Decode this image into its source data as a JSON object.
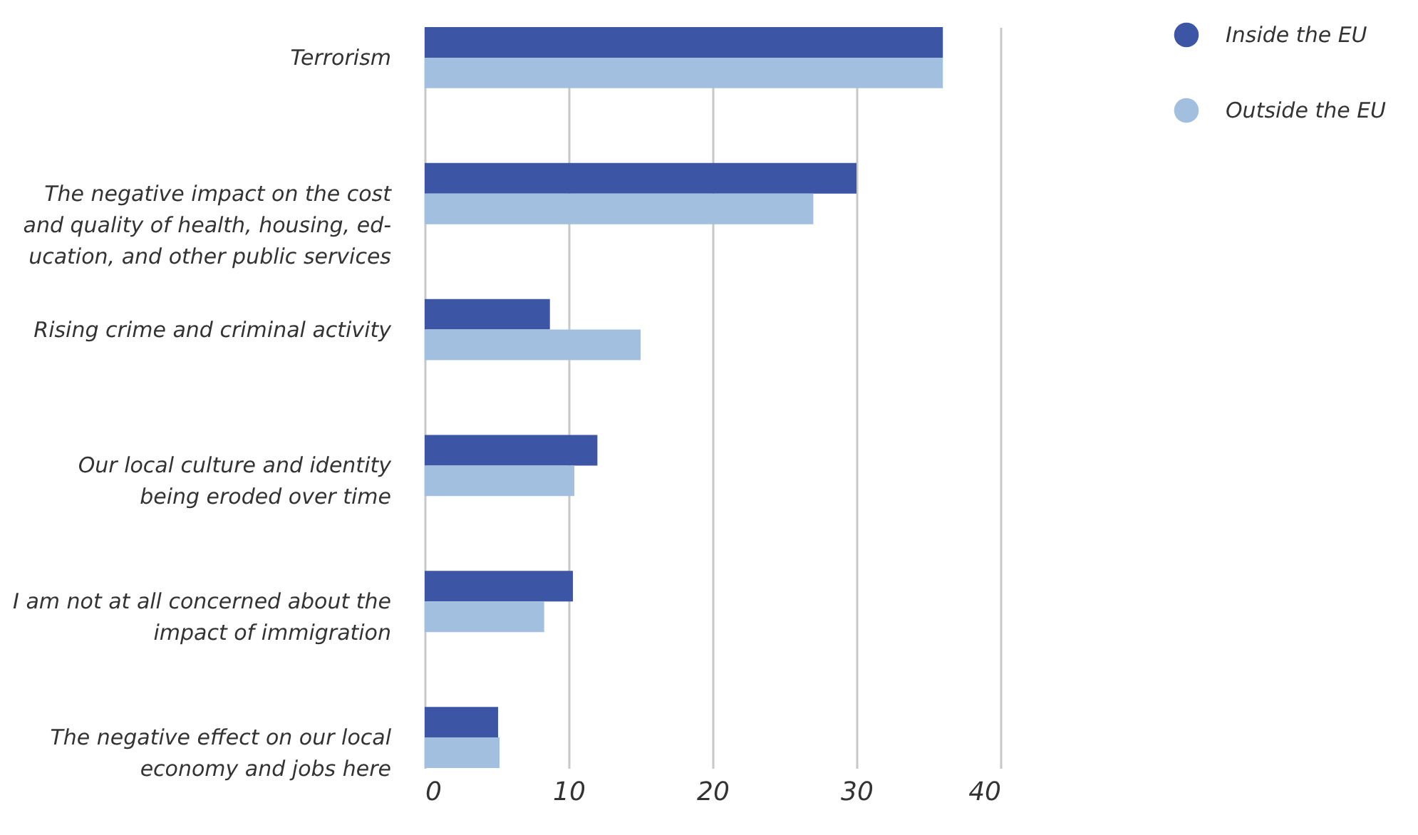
{
  "chart_data": {
    "type": "bar",
    "orientation": "horizontal",
    "categories": [
      "Terrorism",
      "The negative impact on the cost\nand quality of health, housing, ed-\nucation, and other public services",
      "Rising crime and criminal activity",
      "Our local culture and identity\nbeing eroded over time",
      "I am not at all concerned about the\nimpact of immigration",
      "The negative effect on our local\neconomy and jobs here"
    ],
    "series": [
      {
        "name": "Inside the EU",
        "color": "#3d55a5",
        "values": [
          36,
          30,
          8.7,
          12,
          10.3,
          5.1
        ]
      },
      {
        "name": "Outside the EU",
        "color": "#a3bfdf",
        "values": [
          36,
          27,
          15,
          10.4,
          8.3,
          5.2
        ]
      }
    ],
    "xlim": [
      0,
      40
    ],
    "xticks": [
      0,
      10,
      20,
      30,
      40
    ],
    "grid": "x",
    "legend": "top right"
  }
}
